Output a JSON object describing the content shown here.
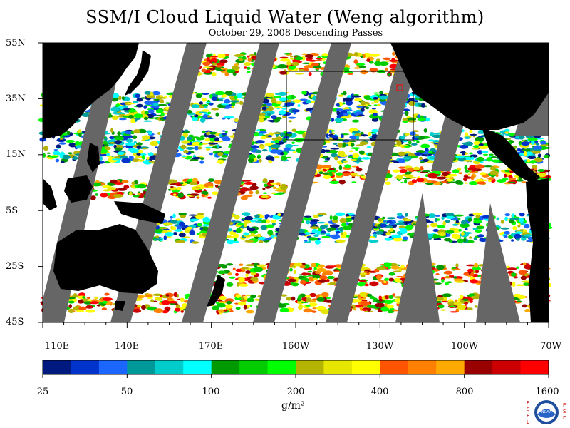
{
  "title": "SSM/I Cloud Liquid Water (Weng algorithm)",
  "subtitle": "October 29, 2008  Descending Passes",
  "lat_labels": [
    "55N",
    "35N",
    "15N",
    "5S",
    "25S",
    "45S"
  ],
  "lon_labels": [
    "110E",
    "140E",
    "170E",
    "160W",
    "130W",
    "100W",
    "70W"
  ],
  "colorbar": {
    "tick_labels": [
      "25",
      "50",
      "100",
      "200",
      "400",
      "800",
      "1600"
    ],
    "unit": "g/m²",
    "colors": [
      "#00197f",
      "#0033cc",
      "#1a66ff",
      "#009999",
      "#00cccc",
      "#00ffff",
      "#009900",
      "#00cc00",
      "#00ff00",
      "#b3b300",
      "#e6e600",
      "#ffff00",
      "#ff5500",
      "#ff7f00",
      "#ffaa00",
      "#990000",
      "#cc0000",
      "#ff0000"
    ]
  },
  "logo": {
    "left_letters": [
      "E",
      "S",
      "R",
      "L"
    ],
    "right_letters": [
      "P",
      "S",
      "D"
    ],
    "center_text": "NOAA"
  }
}
